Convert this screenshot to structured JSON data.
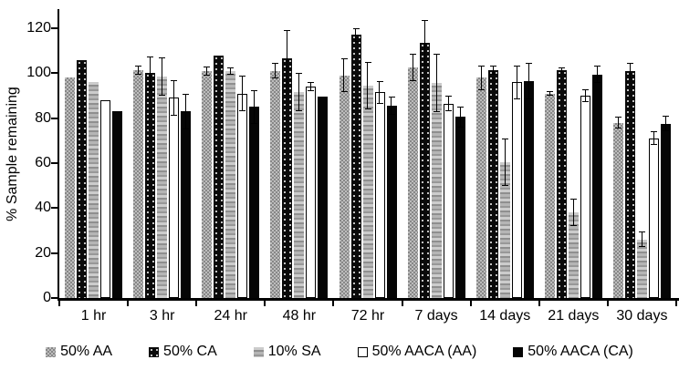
{
  "chart_data": {
    "type": "bar",
    "title": "",
    "xlabel": "",
    "ylabel": "% Sample remaining",
    "ylim": [
      0,
      120
    ],
    "yticks": [
      0,
      20,
      40,
      60,
      80,
      100,
      120
    ],
    "grid": false,
    "legend_position": "bottom",
    "background_color": "#ffffff",
    "axis_color": "#000000",
    "categories": [
      "1 hr",
      "3 hr",
      "24 hr",
      "48 hr",
      "72 hr",
      "7 days",
      "14 days",
      "21 days",
      "30 days"
    ],
    "series": [
      {
        "name": "50% AA",
        "pattern": "gray-checker",
        "color": "#a3a3a3",
        "values": [
          98,
          101.5,
          101,
          101,
          99,
          102.5,
          98,
          91,
          78
        ],
        "errors": [
          0,
          2,
          2,
          3.5,
          7.5,
          6,
          5.5,
          1,
          2.5
        ]
      },
      {
        "name": "50% CA",
        "pattern": "black-dots",
        "color": "#0a0a0a",
        "values": [
          106,
          100,
          108,
          106.5,
          117,
          113.5,
          101.5,
          101.5,
          101
        ],
        "errors": [
          0,
          7.5,
          0,
          12.5,
          3,
          10,
          2,
          1,
          3.5
        ]
      },
      {
        "name": "10% SA",
        "pattern": "gray-stripes",
        "color": "#bdbdbd",
        "values": [
          96,
          98.5,
          101,
          91.5,
          94.5,
          95.5,
          60.5,
          38,
          26
        ],
        "errors": [
          0,
          8.5,
          1.5,
          8.5,
          10.5,
          13,
          10.5,
          6,
          3.5
        ]
      },
      {
        "name": "50% AACA (AA)",
        "pattern": "white-outline",
        "color": "#ffffff",
        "values": [
          88,
          89,
          91,
          94,
          91.5,
          86.5,
          96,
          90,
          71
        ],
        "errors": [
          0,
          8,
          8,
          2,
          5,
          3.5,
          7.5,
          3,
          3
        ]
      },
      {
        "name": "50% AACA (CA)",
        "pattern": "solid-black",
        "color": "#050505",
        "values": [
          83,
          83,
          85,
          89.5,
          85.5,
          80.5,
          96.5,
          99.5,
          77.5
        ],
        "errors": [
          0,
          8,
          7.5,
          0,
          4,
          4.5,
          8,
          4,
          3.5
        ]
      }
    ]
  }
}
